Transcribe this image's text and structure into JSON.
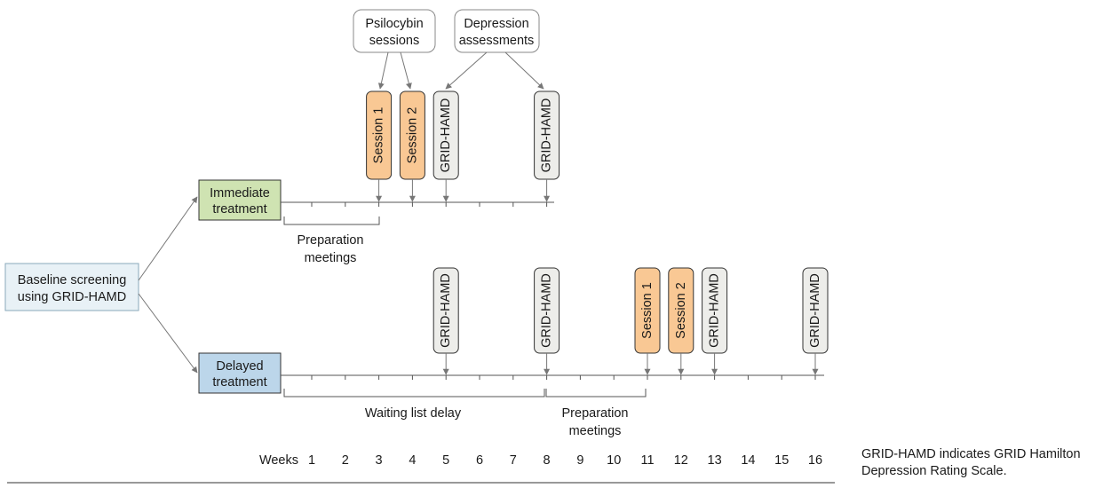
{
  "colors": {
    "baseline_fill": "#e8f1f6",
    "baseline_stroke": "#8aa9bb",
    "immediate_fill": "#cfe3b2",
    "delayed_fill": "#bcd6ea",
    "box_stroke": "#333333",
    "session_fill": "#f9c894",
    "assessment_fill": "#ededea",
    "callout_stroke": "#888888",
    "line": "#555555",
    "arrow": "#777777"
  },
  "baseline": {
    "line1": "Baseline screening",
    "line2": "using GRID-HAMD"
  },
  "immediate": {
    "label_line1": "Immediate",
    "label_line2": "treatment",
    "prep_line1": "Preparation",
    "prep_line2": "meetings",
    "markers": [
      {
        "type": "session",
        "label": "Session 1",
        "week": 3
      },
      {
        "type": "session",
        "label": "Session 2",
        "week": 4
      },
      {
        "type": "assessment",
        "label": "GRID-HAMD",
        "week": 5
      },
      {
        "type": "assessment",
        "label": "GRID-HAMD",
        "week": 8
      }
    ]
  },
  "delayed": {
    "label_line1": "Delayed",
    "label_line2": "treatment",
    "wait_label": "Waiting list delay",
    "prep_line1": "Preparation",
    "prep_line2": "meetings",
    "markers": [
      {
        "type": "assessment",
        "label": "GRID-HAMD",
        "week": 5
      },
      {
        "type": "assessment",
        "label": "GRID-HAMD",
        "week": 8
      },
      {
        "type": "session",
        "label": "Session 1",
        "week": 11
      },
      {
        "type": "session",
        "label": "Session 2",
        "week": 12
      },
      {
        "type": "assessment",
        "label": "GRID-HAMD",
        "week": 13
      },
      {
        "type": "assessment",
        "label": "GRID-HAMD",
        "week": 16
      }
    ]
  },
  "callouts": {
    "psilocybin": {
      "line1": "Psilocybin",
      "line2": "sessions"
    },
    "depression": {
      "line1": "Depression",
      "line2": "assessments"
    }
  },
  "axis": {
    "title": "Weeks",
    "weeks": [
      "1",
      "2",
      "3",
      "4",
      "5",
      "6",
      "7",
      "8",
      "9",
      "10",
      "11",
      "12",
      "13",
      "14",
      "15",
      "16"
    ]
  },
  "caption": "GRID-HAMD indicates GRID Hamilton Depression Rating Scale."
}
